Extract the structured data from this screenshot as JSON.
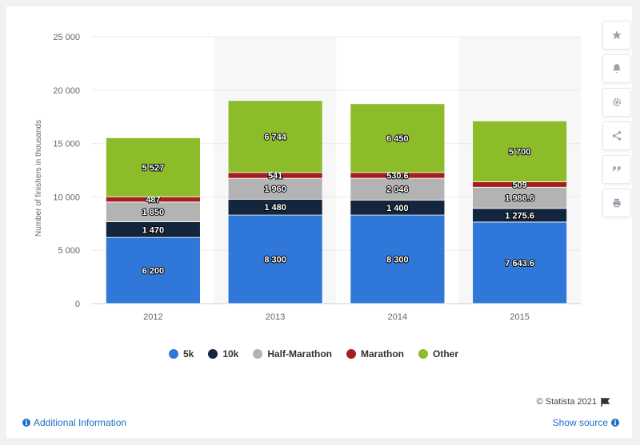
{
  "chart_data": {
    "type": "bar",
    "stacked": true,
    "categories": [
      "2012",
      "2013",
      "2014",
      "2015"
    ],
    "series": [
      {
        "name": "5k",
        "color": "#2f77d8",
        "values": [
          6200,
          8300,
          8300,
          7643.6
        ],
        "labels": [
          "6 200",
          "8 300",
          "8 300",
          "7 643.6"
        ]
      },
      {
        "name": "10k",
        "color": "#13263d",
        "values": [
          1470,
          1480,
          1400,
          1275.6
        ],
        "labels": [
          "1 470",
          "1 480",
          "1 400",
          "1 275.6"
        ]
      },
      {
        "name": "Half-Marathon",
        "color": "#b3b3b3",
        "values": [
          1850,
          1960,
          2046,
          1986.6
        ],
        "labels": [
          "1 850",
          "1 960",
          "2 046",
          "1 986.6"
        ]
      },
      {
        "name": "Marathon",
        "color": "#a81d1d",
        "values": [
          487,
          541,
          530.6,
          509
        ],
        "labels": [
          "487",
          "541",
          "530.6",
          "509"
        ]
      },
      {
        "name": "Other",
        "color": "#8cbc2a",
        "values": [
          5527,
          6744,
          6450,
          5700
        ],
        "labels": [
          "5 527",
          "6 744",
          "6 450",
          "5 700"
        ]
      }
    ],
    "ylabel": "Number of finishers in thousands",
    "ylim": [
      0,
      25000
    ],
    "yticks": [
      0,
      5000,
      10000,
      15000,
      20000,
      25000
    ],
    "ytick_labels": [
      "0",
      "5 000",
      "10 000",
      "15 000",
      "20 000",
      "25 000"
    ],
    "grid": true,
    "legend_position": "bottom"
  },
  "footer": {
    "credit": "© Statista 2021",
    "additional_info": "Additional Information",
    "show_source": "Show source"
  },
  "sidebar_icons": [
    "star-icon",
    "bell-icon",
    "gear-icon",
    "share-icon",
    "quote-icon",
    "print-icon"
  ]
}
